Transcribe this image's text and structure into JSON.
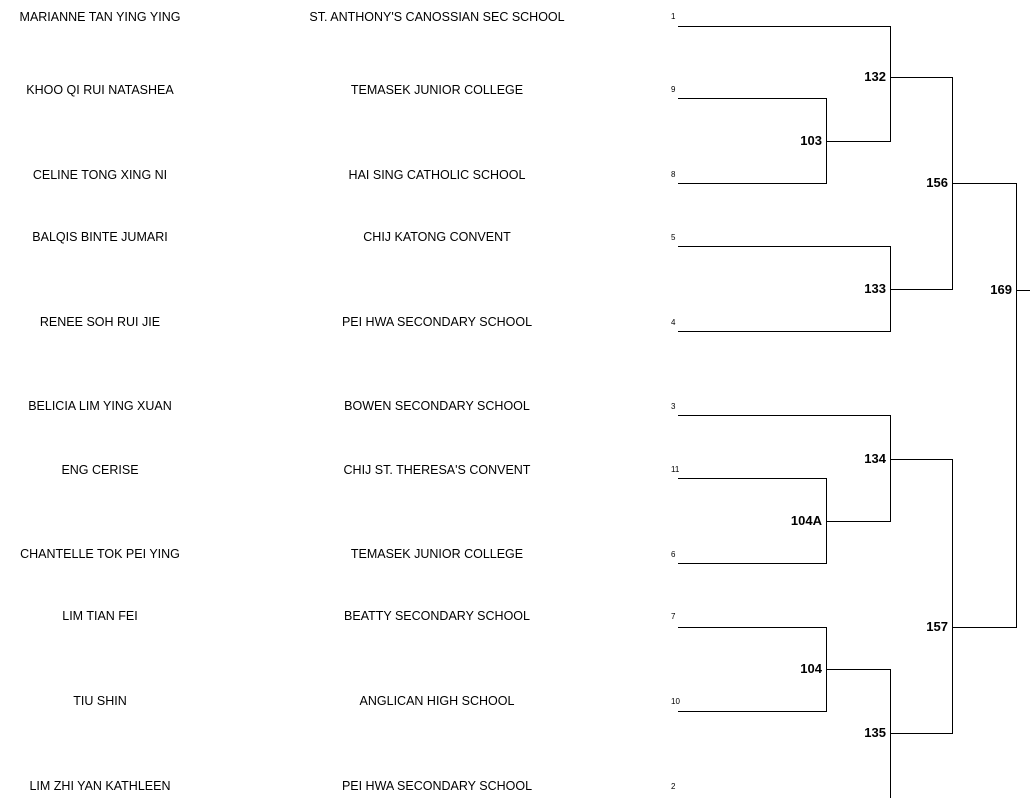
{
  "entries": [
    {
      "player": "MARIANNE TAN YING YING",
      "school": "ST. ANTHONY'S CANOSSIAN SEC SCHOOL",
      "seed": "1"
    },
    {
      "player": "KHOO QI RUI NATASHEA",
      "school": "TEMASEK JUNIOR COLLEGE",
      "seed": "9"
    },
    {
      "player": "CELINE TONG XING NI",
      "school": "HAI SING CATHOLIC SCHOOL",
      "seed": "8"
    },
    {
      "player": "BALQIS BINTE JUMARI",
      "school": "CHIJ KATONG CONVENT",
      "seed": "5"
    },
    {
      "player": "RENEE SOH RUI JIE",
      "school": "PEI HWA SECONDARY SCHOOL",
      "seed": "4"
    },
    {
      "player": "BELICIA LIM YING XUAN",
      "school": "BOWEN SECONDARY SCHOOL",
      "seed": "3"
    },
    {
      "player": "ENG CERISE",
      "school": "CHIJ ST. THERESA'S CONVENT",
      "seed": "11"
    },
    {
      "player": "CHANTELLE TOK PEI YING",
      "school": "TEMASEK JUNIOR COLLEGE",
      "seed": "6"
    },
    {
      "player": "LIM TIAN FEI",
      "school": "BEATTY SECONDARY SCHOOL",
      "seed": "7"
    },
    {
      "player": "TIU SHIN",
      "school": "ANGLICAN HIGH SCHOOL",
      "seed": "10"
    },
    {
      "player": "LIM ZHI YAN KATHLEEN",
      "school": "PEI HWA SECONDARY SCHOOL",
      "seed": "2"
    }
  ],
  "matches": {
    "m103": "103",
    "m104a": "104A",
    "m104": "104",
    "m132": "132",
    "m133": "133",
    "m134": "134",
    "m135": "135",
    "m156": "156",
    "m157": "157",
    "m169": "169"
  }
}
